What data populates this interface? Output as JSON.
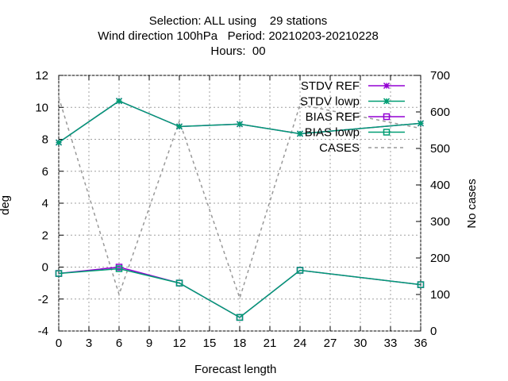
{
  "title": {
    "line1": "Selection: ALL using    29 stations",
    "line2": "Wind direction 100hPa   Period: 20210203-20210228",
    "line3": "Hours:  00"
  },
  "chart_data": {
    "type": "line",
    "xlabel": "Forecast length",
    "ylabel": "deg",
    "y2label": "No cases",
    "xlim": [
      0,
      36
    ],
    "ylim": [
      -4,
      12
    ],
    "y2lim": [
      0,
      700
    ],
    "xticks": [
      0,
      3,
      6,
      9,
      12,
      15,
      18,
      21,
      24,
      27,
      30,
      33,
      36
    ],
    "yticks": [
      -4,
      -2,
      0,
      2,
      4,
      6,
      8,
      10,
      12
    ],
    "y2ticks": [
      0,
      100,
      200,
      300,
      400,
      500,
      600,
      700
    ],
    "x": [
      0,
      6,
      12,
      18,
      24,
      36
    ],
    "legend_position": "top-right",
    "series": [
      {
        "name": "STDV REF",
        "axis": "y",
        "color": "#9400d3",
        "marker": "star",
        "values": [
          7.8,
          10.4,
          8.8,
          8.95,
          8.35,
          9.0
        ]
      },
      {
        "name": "STDV lowp",
        "axis": "y",
        "color": "#009e73",
        "marker": "star",
        "values": [
          7.8,
          10.4,
          8.8,
          8.95,
          8.35,
          9.0
        ]
      },
      {
        "name": "BIAS REF",
        "axis": "y",
        "color": "#9400d3",
        "marker": "square",
        "values": [
          -0.4,
          0.0,
          -1.0,
          -3.15,
          -0.2,
          -1.1
        ]
      },
      {
        "name": "BIAS lowp",
        "axis": "y",
        "color": "#009e73",
        "marker": "square",
        "values": [
          -0.4,
          -0.1,
          -1.0,
          -3.15,
          -0.2,
          -1.1
        ]
      },
      {
        "name": "CASES",
        "axis": "y2",
        "color": "#999999",
        "marker": "none",
        "dashed": true,
        "values": [
          640,
          100,
          575,
          90,
          620,
          555
        ]
      }
    ]
  }
}
